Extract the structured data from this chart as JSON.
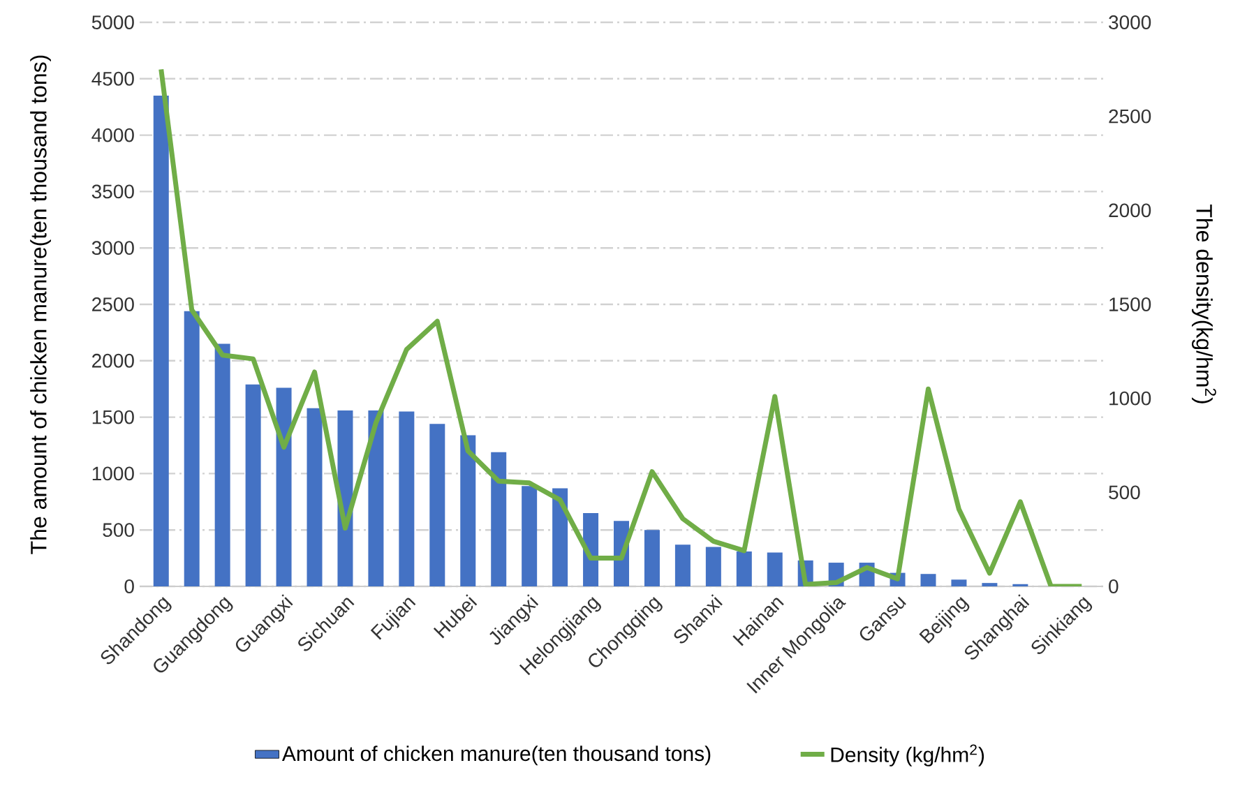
{
  "chart_data": {
    "type": "bar",
    "categories": [
      "Shandong",
      null,
      "Guangdong",
      null,
      "Guangxi",
      null,
      "Sichuan",
      null,
      "Fujian",
      null,
      "Hubei",
      null,
      "Jiangxi",
      null,
      "Helongjiang",
      null,
      "Chongqing",
      null,
      "Shanxi",
      null,
      "Hainan",
      null,
      "Inner Mongolia",
      null,
      "Gansu",
      null,
      "Beijing",
      null,
      "Shanghai",
      null,
      "Sinkiang"
    ],
    "series": [
      {
        "name": "Amount of chicken manure(ten thousand tons)",
        "color": "#4472c4",
        "values": [
          4350,
          2440,
          2150,
          1790,
          1760,
          1580,
          1560,
          1560,
          1550,
          1440,
          1340,
          1190,
          890,
          870,
          650,
          580,
          500,
          370,
          350,
          310,
          300,
          230,
          210,
          210,
          120,
          110,
          60,
          30,
          20,
          null,
          0
        ]
      },
      {
        "name": "Density (kg/hm$^{2}$)",
        "type": "line",
        "axis": "y2",
        "color": "#70ad47",
        "values": [
          2750,
          1470,
          1230,
          1210,
          740,
          1140,
          310,
          870,
          1260,
          1410,
          720,
          560,
          550,
          460,
          150,
          150,
          610,
          360,
          240,
          190,
          1010,
          10,
          20,
          100,
          40,
          1050,
          410,
          70,
          450,
          0,
          0
        ]
      }
    ],
    "ylabel": "The amount of chicken manure(ten thousand tons)",
    "y2label": "The density(kg/hm$^{2}$)",
    "ylim": [
      0,
      5000
    ],
    "yticks": [
      0,
      500,
      1000,
      1500,
      2000,
      2500,
      3000,
      3500,
      4000,
      4500,
      5000
    ],
    "y2lim": [
      0,
      3000
    ],
    "y2ticks": [
      0,
      500,
      1000,
      1500,
      2000,
      2500,
      3000
    ],
    "grid": "y",
    "legend": "bottom",
    "marker": "none",
    "line_style": "solid"
  }
}
